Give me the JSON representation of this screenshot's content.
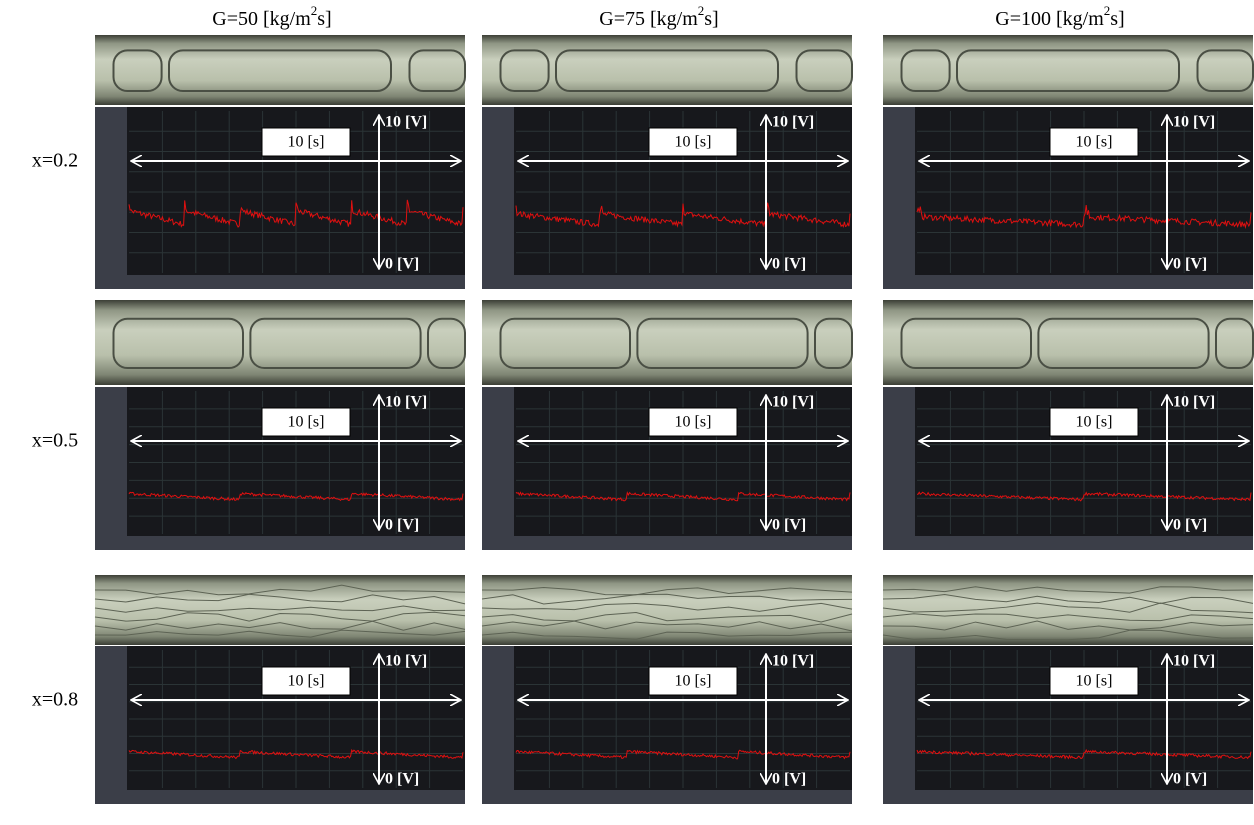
{
  "columns": [
    {
      "prefix": "G=50 [kg/m",
      "sup": "2",
      "suffix": "s]"
    },
    {
      "prefix": "G=75 [kg/m",
      "sup": "2",
      "suffix": "s]"
    },
    {
      "prefix": "G=100 [kg/m",
      "sup": "2",
      "suffix": "s]"
    }
  ],
  "rows": [
    "x=0.2",
    "x=0.5",
    "x=0.8"
  ],
  "annotations": {
    "time": "10 [s]",
    "vmax": "10 [V]",
    "vmin": "0 [V]"
  }
}
